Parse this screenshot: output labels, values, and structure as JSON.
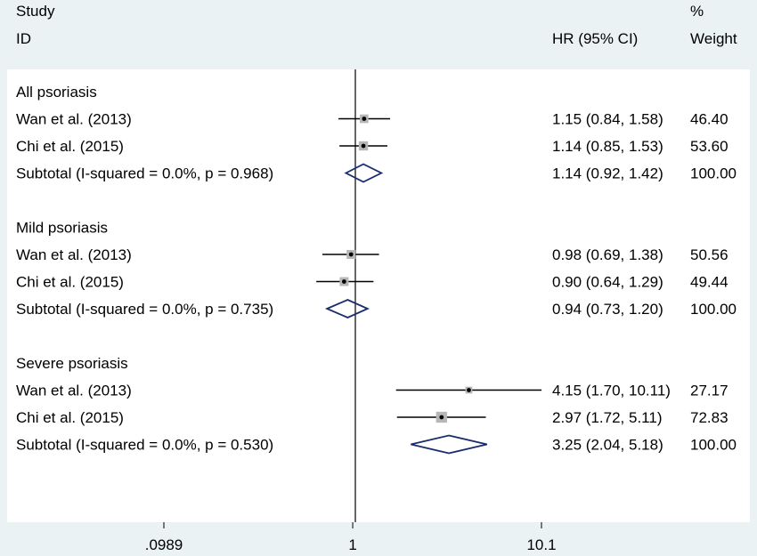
{
  "header": {
    "col1_line1": "Study",
    "col1_line2": "ID",
    "col2_line2": "HR (95% CI)",
    "col3_line1": "%",
    "col3_line2": "Weight"
  },
  "colors": {
    "panel_background": "#eaf2f3",
    "plot_background": "#ffffff",
    "point_box": "#b7b7b7",
    "point_dot": "#000000",
    "ci_line": "#000000",
    "diamond": "#1a2c6e",
    "reference_line": "#000000"
  },
  "chart_data": {
    "type": "forest",
    "x_scale": "log",
    "reference_value": 1,
    "xlim": [
      0.0989,
      10.1
    ],
    "ticks": [
      {
        "value": 0.0989,
        "label": ".0989"
      },
      {
        "value": 1,
        "label": "1"
      },
      {
        "value": 10.1,
        "label": "10.1"
      }
    ],
    "groups": [
      {
        "label": "All psoriasis",
        "studies": [
          {
            "name": "Wan et al. (2013)",
            "hr": 1.15,
            "lo": 0.84,
            "hi": 1.58,
            "weight": 46.4,
            "ci_text": "1.15 (0.84, 1.58)",
            "weight_text": "46.40"
          },
          {
            "name": "Chi et al. (2015)",
            "hr": 1.14,
            "lo": 0.85,
            "hi": 1.53,
            "weight": 53.6,
            "ci_text": "1.14 (0.85, 1.53)",
            "weight_text": "53.60"
          }
        ],
        "subtotal": {
          "label": "Subtotal  (I-squared = 0.0%, p = 0.968)",
          "hr": 1.14,
          "lo": 0.92,
          "hi": 1.42,
          "ci_text": "1.14 (0.92, 1.42)",
          "weight_text": "100.00"
        }
      },
      {
        "label": "Mild psoriasis",
        "studies": [
          {
            "name": "Wan et al. (2013)",
            "hr": 0.98,
            "lo": 0.69,
            "hi": 1.38,
            "weight": 50.56,
            "ci_text": "0.98 (0.69, 1.38)",
            "weight_text": "50.56"
          },
          {
            "name": "Chi et al. (2015)",
            "hr": 0.9,
            "lo": 0.64,
            "hi": 1.29,
            "weight": 49.44,
            "ci_text": "0.90 (0.64, 1.29)",
            "weight_text": "49.44"
          }
        ],
        "subtotal": {
          "label": "Subtotal  (I-squared = 0.0%, p = 0.735)",
          "hr": 0.94,
          "lo": 0.73,
          "hi": 1.2,
          "ci_text": "0.94 (0.73, 1.20)",
          "weight_text": "100.00"
        }
      },
      {
        "label": "Severe psoriasis",
        "studies": [
          {
            "name": "Wan et al. (2013)",
            "hr": 4.15,
            "lo": 1.7,
            "hi": 10.11,
            "weight": 27.17,
            "ci_text": "4.15 (1.70, 10.11)",
            "weight_text": "27.17"
          },
          {
            "name": "Chi et al. (2015)",
            "hr": 2.97,
            "lo": 1.72,
            "hi": 5.11,
            "weight": 72.83,
            "ci_text": "2.97 (1.72, 5.11)",
            "weight_text": "72.83"
          }
        ],
        "subtotal": {
          "label": "Subtotal  (I-squared = 0.0%, p = 0.530)",
          "hr": 3.25,
          "lo": 2.04,
          "hi": 5.18,
          "ci_text": "3.25 (2.04, 5.18)",
          "weight_text": "100.00"
        }
      }
    ]
  }
}
